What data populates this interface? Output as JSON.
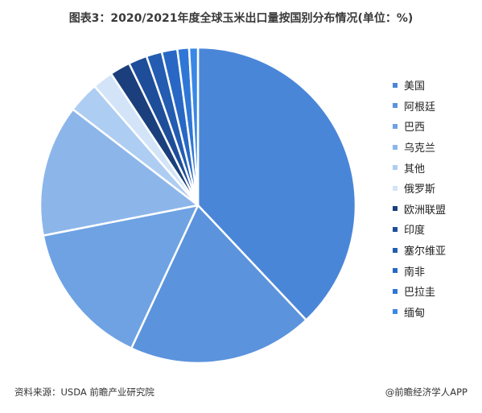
{
  "title": "图表3：2020/2021年度全球玉米出口量按国别分布情况(单位：%)",
  "source": "资料来源：USDA 前瞻产业研究院",
  "brand": "@前瞻经济学人APP",
  "chart_data": {
    "type": "pie",
    "start_angle_deg": 0,
    "direction": "clockwise",
    "legend_position": "right",
    "series": [
      {
        "name": "美国",
        "value": 38.0,
        "color": "#4a86d8"
      },
      {
        "name": "阿根廷",
        "value": 19.0,
        "color": "#5b93dd"
      },
      {
        "name": "巴西",
        "value": 15.0,
        "color": "#6ea2e3"
      },
      {
        "name": "乌克兰",
        "value": 13.5,
        "color": "#8cb6ea"
      },
      {
        "name": "其他",
        "value": 3.2,
        "color": "#aecdf2"
      },
      {
        "name": "俄罗斯",
        "value": 2.1,
        "color": "#d3e4f8"
      },
      {
        "name": "欧洲联盟",
        "value": 2.1,
        "color": "#1a3f7c"
      },
      {
        "name": "印度",
        "value": 1.9,
        "color": "#1e4e99"
      },
      {
        "name": "塞尔维亚",
        "value": 1.6,
        "color": "#235cb0"
      },
      {
        "name": "南非",
        "value": 1.6,
        "color": "#2868c4"
      },
      {
        "name": "巴拉圭",
        "value": 1.2,
        "color": "#2f77d6"
      },
      {
        "name": "缅甸",
        "value": 0.9,
        "color": "#3a88e6"
      }
    ]
  }
}
